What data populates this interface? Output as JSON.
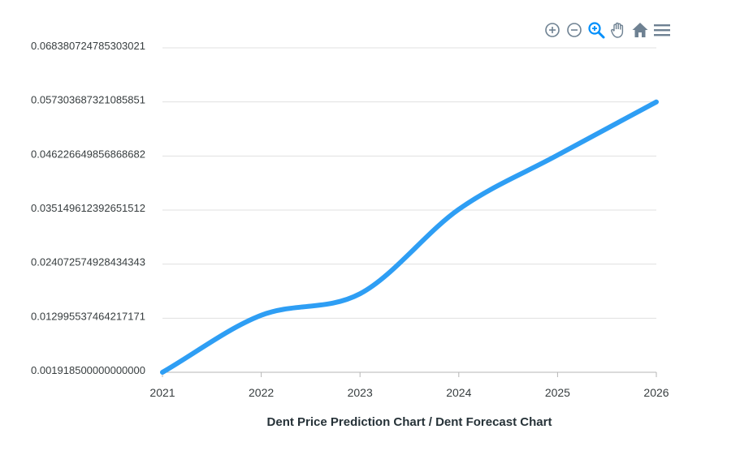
{
  "colors": {
    "series": "#2e9ef4",
    "grid": "#e0e0e0",
    "axis": "#b6b6b6",
    "text": "#373d3f",
    "title": "#263238",
    "icon": "#6e8192",
    "icon_active": "#008ffb"
  },
  "toolbar": {
    "icons": [
      "zoom-in-icon",
      "zoom-out-icon",
      "zoom-selection-icon",
      "pan-hand-icon",
      "reset-home-icon",
      "menu-icon"
    ],
    "active": "zoom-selection-icon"
  },
  "chart_data": {
    "type": "line",
    "title": "",
    "xlabel": "Dent Price Prediction Chart / Dent Forecast Chart",
    "ylabel": "",
    "x": [
      2021,
      2022,
      2023,
      2024,
      2025,
      2026
    ],
    "x_tick_labels": [
      "2021",
      "2022",
      "2023",
      "2024",
      "2025",
      "2026"
    ],
    "series": [
      {
        "values": [
          0.0019185,
          0.0136,
          0.018,
          0.0353,
          0.0464,
          0.0573
        ]
      }
    ],
    "y_tick_labels": [
      "0.068380724785303021",
      "0.057303687321085851",
      "0.046226649856868682",
      "0.035149612392651512",
      "0.024072574928434343",
      "0.012995537464217171",
      "0.001918500000000000"
    ],
    "xlim": [
      2021,
      2026
    ],
    "ylim": [
      0.0019185,
      0.06838072478530302
    ],
    "grid": true,
    "legend": "none"
  }
}
